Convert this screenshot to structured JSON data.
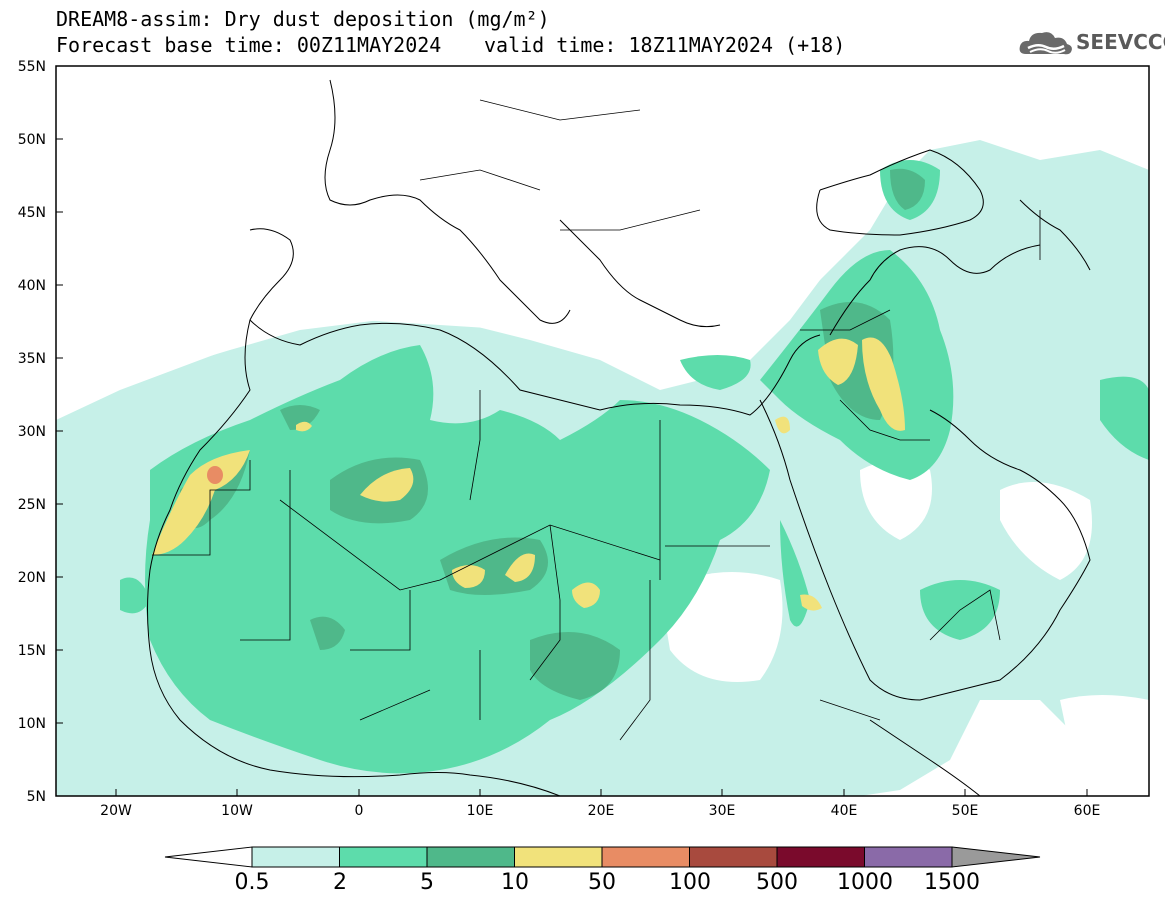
{
  "header": {
    "title_line1": "DREAM8-assim: Dry dust deposition (mg/m²)",
    "title_line2": "Forecast base time: 00Z11MAY2024",
    "valid_time": "valid time: 18Z11MAY2024 (+18)",
    "logo_text": "SEEVCCC",
    "logo_icon": "cloud-icon"
  },
  "map": {
    "lat_labels": [
      "55N",
      "50N",
      "45N",
      "40N",
      "35N",
      "30N",
      "25N",
      "20N",
      "15N",
      "10N",
      "5N"
    ],
    "lon_labels": [
      "20W",
      "10W",
      "0",
      "10E",
      "20E",
      "30E",
      "40E",
      "50E",
      "60E"
    ]
  },
  "colorbar": {
    "labels": [
      "0.5",
      "2",
      "5",
      "10",
      "50",
      "100",
      "500",
      "1000",
      "1500"
    ],
    "colors": [
      "#c6f0e8",
      "#5ddcab",
      "#4fb88a",
      "#f1e27b",
      "#e88c64",
      "#a84a3e",
      "#7a0a2c",
      "#8a6aa8",
      "#9a9a9a"
    ]
  }
}
